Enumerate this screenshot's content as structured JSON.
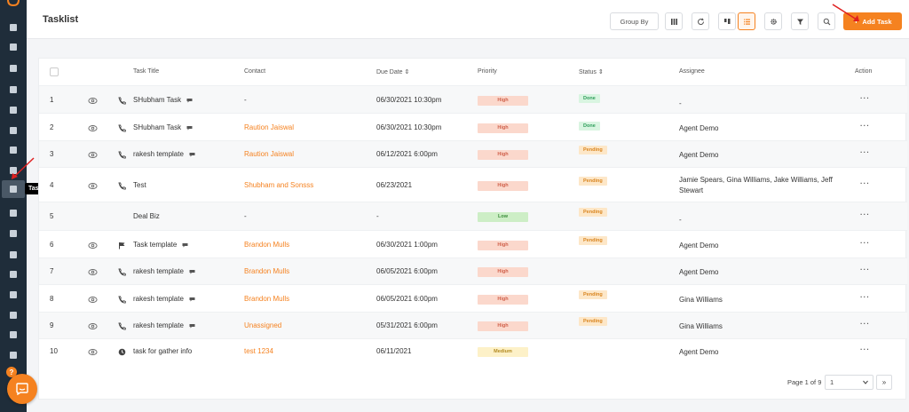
{
  "app": {
    "title": "Tasklist",
    "sidebar_tooltip": "Tasklist",
    "help_label": "?",
    "accent_color": "#f58220"
  },
  "sidebar": {
    "icons": [
      "dashboard-icon",
      "contacts-icon",
      "copy-icon",
      "bank-icon",
      "list-icon",
      "document-icon",
      "funnel-icon",
      "megaphone-icon",
      "tasklist-icon",
      "chart-icon",
      "mail-icon",
      "inbox-icon",
      "calendar-icon",
      "tray-icon",
      "dollar-icon",
      "clipboard-icon",
      "settings-icon"
    ]
  },
  "header": {
    "group_by_label": "Group By",
    "add_task_label": "Add Task",
    "add_task_plus": "+"
  },
  "table": {
    "columns": [
      "Task Title",
      "Contact",
      "Due Date",
      "Priority",
      "Status",
      "Assignee",
      "Action"
    ],
    "sort_glyph": "⇕",
    "action_glyph": "···",
    "rows": [
      {
        "num": "1",
        "icon": "phone-icon",
        "eye": true,
        "title": "SHubham Task",
        "note": true,
        "contact": "-",
        "contact_link": false,
        "due": "06/30/2021 10:30pm",
        "priority": "High",
        "status": "Done",
        "assignee": "-"
      },
      {
        "num": "2",
        "icon": "phone-icon",
        "eye": true,
        "title": "SHubham Task",
        "note": true,
        "contact": "Raution Jaiswal",
        "contact_link": true,
        "due": "06/30/2021 10:30pm",
        "priority": "High",
        "status": "Done",
        "assignee": "Agent Demo"
      },
      {
        "num": "3",
        "icon": "phone-icon",
        "eye": true,
        "title": "rakesh template",
        "note": true,
        "contact": "Raution Jaiswal",
        "contact_link": true,
        "due": "06/12/2021 6:00pm",
        "priority": "High",
        "status": "Pending",
        "assignee": "Agent Demo"
      },
      {
        "num": "4",
        "icon": "phone-icon",
        "eye": true,
        "title": "Test",
        "note": false,
        "contact": "Shubham and Sonsss",
        "contact_link": true,
        "due": "06/23/2021",
        "priority": "High",
        "status": "Pending",
        "assignee": "Jamie Spears, Gina Williams, Jake Williams, Jeff Stewart"
      },
      {
        "num": "5",
        "icon": "",
        "eye": false,
        "title": "Deal Biz",
        "note": false,
        "contact": "-",
        "contact_link": false,
        "due": "-",
        "priority": "Low",
        "status": "Pending",
        "assignee": "-"
      },
      {
        "num": "6",
        "icon": "flag-icon",
        "eye": true,
        "title": "Task template",
        "note": true,
        "contact": "Brandon Mulls",
        "contact_link": true,
        "due": "06/30/2021 1:00pm",
        "priority": "High",
        "status": "Pending",
        "assignee": "Agent Demo"
      },
      {
        "num": "7",
        "icon": "phone-icon",
        "eye": true,
        "title": "rakesh template",
        "note": true,
        "contact": "Brandon Mulls",
        "contact_link": true,
        "due": "06/05/2021 6:00pm",
        "priority": "High",
        "status": "",
        "assignee": "Agent Demo"
      },
      {
        "num": "8",
        "icon": "phone-icon",
        "eye": true,
        "title": "rakesh template",
        "note": true,
        "contact": "Brandon Mulls",
        "contact_link": true,
        "due": "06/05/2021 6:00pm",
        "priority": "High",
        "status": "Pending",
        "assignee": "Gina Williams"
      },
      {
        "num": "9",
        "icon": "phone-icon",
        "eye": true,
        "title": "rakesh template",
        "note": true,
        "contact": "Unassigned",
        "contact_link": true,
        "due": "05/31/2021 6:00pm",
        "priority": "High",
        "status": "Pending",
        "assignee": "Gina Williams"
      },
      {
        "num": "10",
        "icon": "clock-icon",
        "eye": true,
        "title": "task for gather info",
        "note": false,
        "contact": "test 1234",
        "contact_link": true,
        "due": "06/11/2021",
        "priority": "Medium",
        "status": "",
        "assignee": "Agent Demo"
      }
    ]
  },
  "pagination": {
    "page_text": "Page 1 of 9",
    "selected_page": "1",
    "next_label": "»"
  }
}
